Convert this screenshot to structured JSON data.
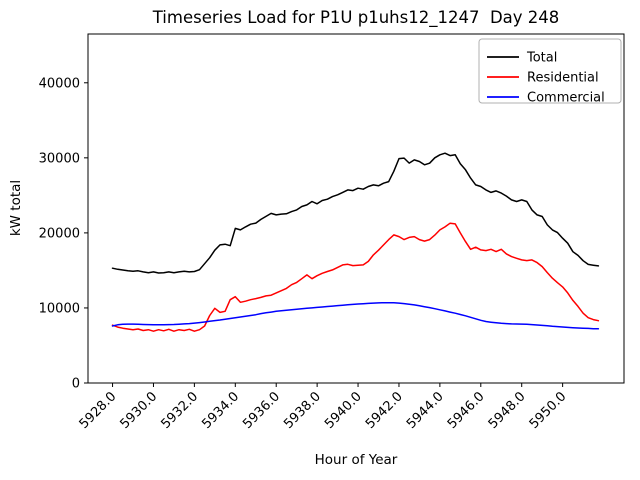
{
  "figure": {
    "title": "Timeseries Load for P1U p1uhs12_1247  Day 248",
    "xlabel": "Hour of Year",
    "ylabel": "kW total"
  },
  "chart_data": {
    "type": "line",
    "title": "Timeseries Load for P1U p1uhs12_1247  Day 248",
    "xlabel": "Hour of Year",
    "ylabel": "kW total",
    "grid": false,
    "legend_position": "upper right",
    "background": "#ffffff",
    "x_start": 5928.0,
    "x_step": 0.25,
    "xlim": [
      5926.8,
      5953.0
    ],
    "ylim": [
      0,
      46500
    ],
    "x_tick_values": [
      5928,
      5930,
      5932,
      5934,
      5936,
      5938,
      5940,
      5942,
      5944,
      5946,
      5948,
      5950
    ],
    "x_tick_labels": [
      "5928.0",
      "5930.0",
      "5932.0",
      "5934.0",
      "5936.0",
      "5938.0",
      "5940.0",
      "5942.0",
      "5944.0",
      "5946.0",
      "5948.0",
      "5950.0"
    ],
    "y_tick_values": [
      0,
      10000,
      20000,
      30000,
      40000
    ],
    "y_tick_labels": [
      "0",
      "10000",
      "20000",
      "30000",
      "40000"
    ],
    "series": [
      {
        "name": "Total",
        "color": "#000000",
        "values": [
          15300,
          15150,
          15050,
          14950,
          14900,
          14950,
          14800,
          14700,
          14800,
          14650,
          14700,
          14800,
          14700,
          14800,
          14900,
          14800,
          14850,
          15100,
          15900,
          16700,
          17700,
          18400,
          18500,
          18300,
          20600,
          20400,
          20800,
          21160,
          21300,
          21800,
          22200,
          22600,
          22400,
          22500,
          22550,
          22840,
          23070,
          23510,
          23730,
          24180,
          23870,
          24310,
          24490,
          24840,
          25070,
          25400,
          25730,
          25640,
          25960,
          25820,
          26180,
          26400,
          26270,
          26620,
          26840,
          28200,
          29900,
          29960,
          29300,
          29730,
          29510,
          29070,
          29290,
          30000,
          30400,
          30620,
          30300,
          30400,
          29200,
          28400,
          27300,
          26400,
          26180,
          25730,
          25400,
          25600,
          25300,
          24900,
          24400,
          24180,
          24400,
          24180,
          23070,
          22400,
          22180,
          21070,
          20400,
          20040,
          19290,
          18620,
          17500,
          17000,
          16300,
          15800,
          15700,
          15600
        ]
      },
      {
        "name": "Residential",
        "color": "#ff0000",
        "values": [
          7700,
          7450,
          7300,
          7200,
          7100,
          7200,
          7000,
          7100,
          6900,
          7100,
          6950,
          7150,
          6900,
          7100,
          7000,
          7150,
          6900,
          7100,
          7600,
          9000,
          9950,
          9400,
          9550,
          11100,
          11500,
          10750,
          10900,
          11100,
          11250,
          11400,
          11600,
          11700,
          12000,
          12300,
          12600,
          13100,
          13400,
          13900,
          14400,
          13900,
          14300,
          14620,
          14850,
          15070,
          15400,
          15730,
          15820,
          15640,
          15700,
          15730,
          16200,
          17070,
          17700,
          18400,
          19100,
          19730,
          19510,
          19100,
          19400,
          19500,
          19100,
          18900,
          19100,
          19700,
          20400,
          20800,
          21290,
          21200,
          20000,
          18840,
          17820,
          18090,
          17730,
          17640,
          17820,
          17510,
          17820,
          17200,
          16840,
          16620,
          16400,
          16310,
          16400,
          16040,
          15510,
          14710,
          13960,
          13370,
          12800,
          12000,
          11000,
          10200,
          9300,
          8700,
          8450,
          8300
        ]
      },
      {
        "name": "Commercial",
        "color": "#0000ff",
        "values": [
          7600,
          7750,
          7820,
          7850,
          7850,
          7820,
          7800,
          7780,
          7760,
          7750,
          7760,
          7780,
          7800,
          7830,
          7870,
          7920,
          7980,
          8050,
          8130,
          8220,
          8310,
          8400,
          8500,
          8600,
          8700,
          8800,
          8900,
          9000,
          9100,
          9250,
          9350,
          9450,
          9550,
          9620,
          9690,
          9760,
          9830,
          9890,
          9950,
          10010,
          10070,
          10130,
          10190,
          10250,
          10310,
          10370,
          10420,
          10470,
          10520,
          10560,
          10600,
          10640,
          10670,
          10700,
          10700,
          10680,
          10640,
          10580,
          10500,
          10400,
          10290,
          10170,
          10040,
          9900,
          9750,
          9600,
          9450,
          9300,
          9130,
          8950,
          8750,
          8550,
          8350,
          8200,
          8100,
          8020,
          7960,
          7910,
          7880,
          7860,
          7850,
          7820,
          7780,
          7730,
          7680,
          7620,
          7560,
          7510,
          7460,
          7410,
          7370,
          7330,
          7300,
          7270,
          7240,
          7220
        ]
      }
    ]
  }
}
